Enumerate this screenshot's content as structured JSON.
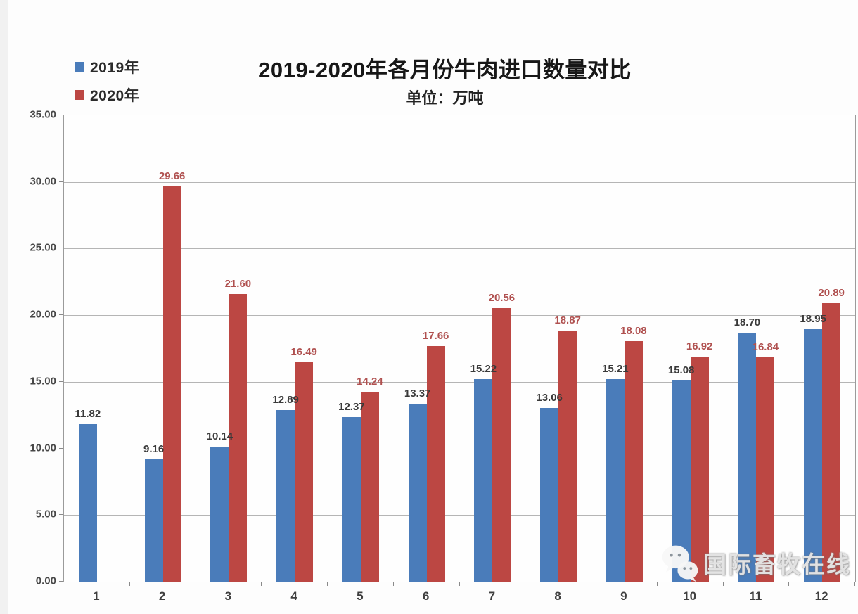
{
  "header": {
    "title": "2019-2020年各月份牛肉进口数量对比",
    "subtitle": "单位：万吨"
  },
  "legend": {
    "items": [
      {
        "label": "2019年",
        "color": "#4a7cba"
      },
      {
        "label": "2020年",
        "color": "#bc4743"
      }
    ]
  },
  "watermark": {
    "icon": "wechat-icon",
    "text": "国际畜牧在线"
  },
  "chart_data": {
    "type": "bar",
    "title": "2019-2020年各月份牛肉进口数量对比",
    "subtitle": "单位：万吨",
    "xlabel": "",
    "ylabel": "万吨",
    "categories": [
      "1",
      "2",
      "3",
      "4",
      "5",
      "6",
      "7",
      "8",
      "9",
      "10",
      "11",
      "12"
    ],
    "series": [
      {
        "name": "2019年",
        "color": "#4a7cba",
        "label_color": "#3a3a3a",
        "values": [
          11.82,
          9.16,
          10.14,
          12.89,
          12.37,
          13.37,
          15.22,
          13.06,
          15.21,
          15.08,
          18.7,
          18.95
        ]
      },
      {
        "name": "2020年",
        "color": "#bc4743",
        "label_color": "#b05150",
        "values": [
          null,
          29.66,
          21.6,
          16.49,
          14.24,
          17.66,
          20.56,
          18.87,
          18.08,
          16.92,
          16.84,
          20.89
        ]
      }
    ],
    "ylim": [
      0,
      35
    ],
    "ytick_step": 5,
    "yticks": [
      "0.00",
      "5.00",
      "10.00",
      "15.00",
      "20.00",
      "25.00",
      "30.00",
      "35.00"
    ],
    "grid": true,
    "legend_position": "top-left"
  }
}
